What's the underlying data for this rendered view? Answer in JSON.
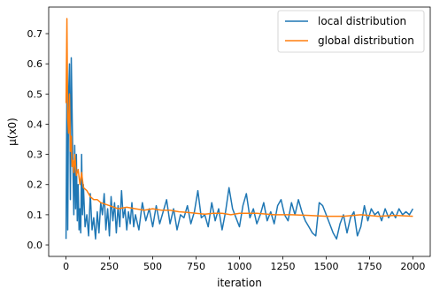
{
  "chart_data": {
    "type": "line",
    "title": "",
    "xlabel": "iteration",
    "ylabel": "µ(x0)",
    "xlim": [
      -100,
      2100
    ],
    "ylim": [
      -0.038,
      0.788
    ],
    "xticks": [
      0,
      250,
      500,
      750,
      1000,
      1250,
      1500,
      1750,
      2000
    ],
    "yticks": [
      0.0,
      0.1,
      0.2,
      0.3,
      0.4,
      0.5,
      0.6,
      0.7
    ],
    "xtick_labels": [
      "0",
      "250",
      "500",
      "750",
      "1000",
      "1250",
      "1500",
      "1750",
      "2000"
    ],
    "ytick_labels": [
      "0.0",
      "0.1",
      "0.2",
      "0.3",
      "0.4",
      "0.5",
      "0.6",
      "0.7"
    ],
    "grid": false,
    "legend_position": "top-right",
    "series": [
      {
        "name": "local distribution",
        "color": "#1f77b4",
        "x": [
          0,
          5,
          10,
          15,
          20,
          25,
          30,
          35,
          40,
          45,
          50,
          55,
          60,
          65,
          70,
          75,
          80,
          85,
          90,
          95,
          100,
          110,
          120,
          130,
          140,
          150,
          160,
          170,
          180,
          190,
          200,
          210,
          220,
          230,
          240,
          250,
          260,
          270,
          280,
          290,
          300,
          310,
          320,
          330,
          340,
          350,
          360,
          370,
          380,
          390,
          400,
          420,
          440,
          460,
          480,
          500,
          520,
          540,
          560,
          580,
          600,
          620,
          640,
          660,
          680,
          700,
          720,
          740,
          760,
          780,
          800,
          820,
          840,
          860,
          880,
          900,
          920,
          940,
          960,
          980,
          1000,
          1020,
          1040,
          1060,
          1080,
          1100,
          1120,
          1140,
          1160,
          1180,
          1200,
          1220,
          1240,
          1260,
          1280,
          1300,
          1320,
          1340,
          1360,
          1380,
          1400,
          1420,
          1440,
          1460,
          1480,
          1500,
          1520,
          1540,
          1560,
          1580,
          1600,
          1620,
          1640,
          1660,
          1680,
          1700,
          1720,
          1740,
          1760,
          1780,
          1800,
          1820,
          1840,
          1860,
          1880,
          1900,
          1920,
          1940,
          1960,
          1980,
          2000
        ],
        "values": [
          0.02,
          0.55,
          0.05,
          0.5,
          0.6,
          0.15,
          0.62,
          0.45,
          0.25,
          0.1,
          0.33,
          0.12,
          0.3,
          0.08,
          0.2,
          0.05,
          0.12,
          0.04,
          0.3,
          0.1,
          0.2,
          0.06,
          0.1,
          0.03,
          0.17,
          0.05,
          0.09,
          0.02,
          0.11,
          0.04,
          0.14,
          0.1,
          0.17,
          0.05,
          0.12,
          0.03,
          0.16,
          0.08,
          0.14,
          0.04,
          0.13,
          0.06,
          0.18,
          0.09,
          0.12,
          0.05,
          0.11,
          0.07,
          0.14,
          0.06,
          0.1,
          0.05,
          0.14,
          0.08,
          0.12,
          0.06,
          0.13,
          0.07,
          0.11,
          0.15,
          0.07,
          0.12,
          0.05,
          0.1,
          0.09,
          0.13,
          0.07,
          0.11,
          0.18,
          0.09,
          0.1,
          0.06,
          0.14,
          0.08,
          0.12,
          0.05,
          0.11,
          0.19,
          0.12,
          0.09,
          0.06,
          0.13,
          0.17,
          0.09,
          0.12,
          0.07,
          0.1,
          0.14,
          0.08,
          0.11,
          0.07,
          0.13,
          0.15,
          0.1,
          0.08,
          0.14,
          0.1,
          0.15,
          0.11,
          0.08,
          0.06,
          0.04,
          0.03,
          0.14,
          0.13,
          0.1,
          0.07,
          0.04,
          0.02,
          0.07,
          0.1,
          0.04,
          0.09,
          0.11,
          0.03,
          0.06,
          0.13,
          0.08,
          0.12,
          0.1,
          0.11,
          0.08,
          0.12,
          0.09,
          0.11,
          0.09,
          0.12,
          0.1,
          0.11,
          0.1,
          0.12
        ]
      },
      {
        "name": "global distribution",
        "color": "#ff7f0e",
        "x": [
          0,
          5,
          10,
          15,
          20,
          25,
          30,
          35,
          40,
          45,
          50,
          60,
          70,
          80,
          90,
          100,
          120,
          140,
          160,
          180,
          200,
          250,
          300,
          350,
          400,
          450,
          500,
          550,
          600,
          650,
          700,
          750,
          800,
          850,
          900,
          950,
          1000,
          1100,
          1200,
          1300,
          1400,
          1500,
          1600,
          1700,
          1800,
          1900,
          2000
        ],
        "values": [
          0.47,
          0.75,
          0.42,
          0.37,
          0.5,
          0.31,
          0.36,
          0.26,
          0.28,
          0.24,
          0.3,
          0.23,
          0.25,
          0.2,
          0.24,
          0.19,
          0.18,
          0.16,
          0.15,
          0.15,
          0.14,
          0.13,
          0.12,
          0.125,
          0.12,
          0.115,
          0.12,
          0.115,
          0.115,
          0.11,
          0.108,
          0.105,
          0.102,
          0.105,
          0.105,
          0.1,
          0.105,
          0.105,
          0.1,
          0.1,
          0.098,
          0.095,
          0.095,
          0.1,
          0.095,
          0.098,
          0.095
        ]
      }
    ]
  }
}
